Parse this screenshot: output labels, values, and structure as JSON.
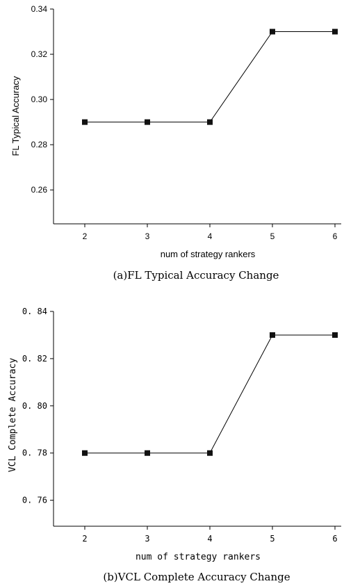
{
  "chart_data": [
    {
      "type": "line",
      "title": "",
      "caption": "(a)FL Typical Accuracy Change",
      "xlabel": "num of strategy rankers",
      "ylabel": "FL Typical Accuracy",
      "x": [
        2,
        3,
        4,
        5,
        6
      ],
      "xticks": [
        "2",
        "3",
        "4",
        "5",
        "6"
      ],
      "yticks": [
        "0.26",
        "0.28",
        "0.30",
        "0.32",
        "0.34"
      ],
      "ylim": [
        0.245,
        0.34
      ],
      "xlim": [
        1.5,
        6.1
      ],
      "series": [
        {
          "values": [
            0.29,
            0.29,
            0.29,
            0.33,
            0.33
          ]
        }
      ],
      "marker": "square",
      "grid": false,
      "color": "#000000"
    },
    {
      "type": "line",
      "title": "",
      "caption": "(b)VCL Complete Accuracy Change",
      "xlabel": "num of strategy rankers",
      "ylabel": "VCL Complete Accuracy",
      "x": [
        2,
        3,
        4,
        5,
        6
      ],
      "xticks": [
        "2",
        "3",
        "4",
        "5",
        "6"
      ],
      "yticks": [
        "0. 76",
        "0. 78",
        "0. 80",
        "0. 82",
        "0. 84"
      ],
      "ylim": [
        0.749,
        0.84
      ],
      "xlim": [
        1.5,
        6.1
      ],
      "series": [
        {
          "values": [
            0.78,
            0.78,
            0.78,
            0.83,
            0.83
          ]
        }
      ],
      "marker": "square",
      "grid": false,
      "color": "#000000"
    }
  ]
}
